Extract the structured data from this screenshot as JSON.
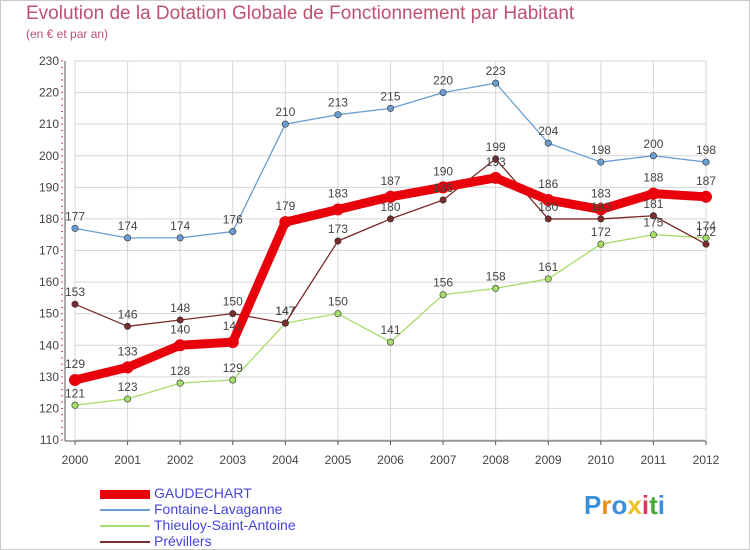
{
  "title": "Evolution de la Dotation Globale de Fonctionnement par Habitant",
  "subtitle": "(en € et par an)",
  "logo_text": "Proxiti",
  "colors": {
    "title": "#c05070",
    "grid": "#d6d6d6",
    "axis": "#555555",
    "legend_text": "#4444dd"
  },
  "chart_data": {
    "type": "line",
    "title": "Evolution de la Dotation Globale de Fonctionnement par Habitant",
    "subtitle": "(en € et par an)",
    "xlabel": "",
    "ylabel": "",
    "x": [
      "2000",
      "2001",
      "2002",
      "2003",
      "2004",
      "2005",
      "2006",
      "2007",
      "2008",
      "2009",
      "2010",
      "2011",
      "2012"
    ],
    "ylim": [
      110,
      230
    ],
    "yticks": [
      110,
      120,
      130,
      140,
      150,
      160,
      170,
      180,
      190,
      200,
      210,
      220,
      230
    ],
    "grid": true,
    "legend_position": "bottom-left",
    "series": [
      {
        "name": "GAUDECHART",
        "color": "#e8000a",
        "emphasis": true,
        "values": [
          129,
          133,
          140,
          141,
          179,
          183,
          187,
          190,
          193,
          186,
          183,
          188,
          187
        ]
      },
      {
        "name": "Fontaine-Lavaganne",
        "color": "#6a9dd0",
        "emphasis": false,
        "values": [
          177,
          174,
          174,
          176,
          210,
          213,
          215,
          220,
          223,
          204,
          198,
          200,
          198
        ]
      },
      {
        "name": "Thieuloy-Saint-Antoine",
        "color": "#a6dc6a",
        "emphasis": false,
        "values": [
          121,
          123,
          128,
          129,
          147,
          150,
          141,
          156,
          158,
          161,
          172,
          175,
          174
        ]
      },
      {
        "name": "Prévillers",
        "color": "#7a2b2b",
        "emphasis": false,
        "values": [
          153,
          146,
          148,
          150,
          147,
          173,
          180,
          186,
          199,
          180,
          180,
          181,
          172
        ]
      }
    ]
  }
}
